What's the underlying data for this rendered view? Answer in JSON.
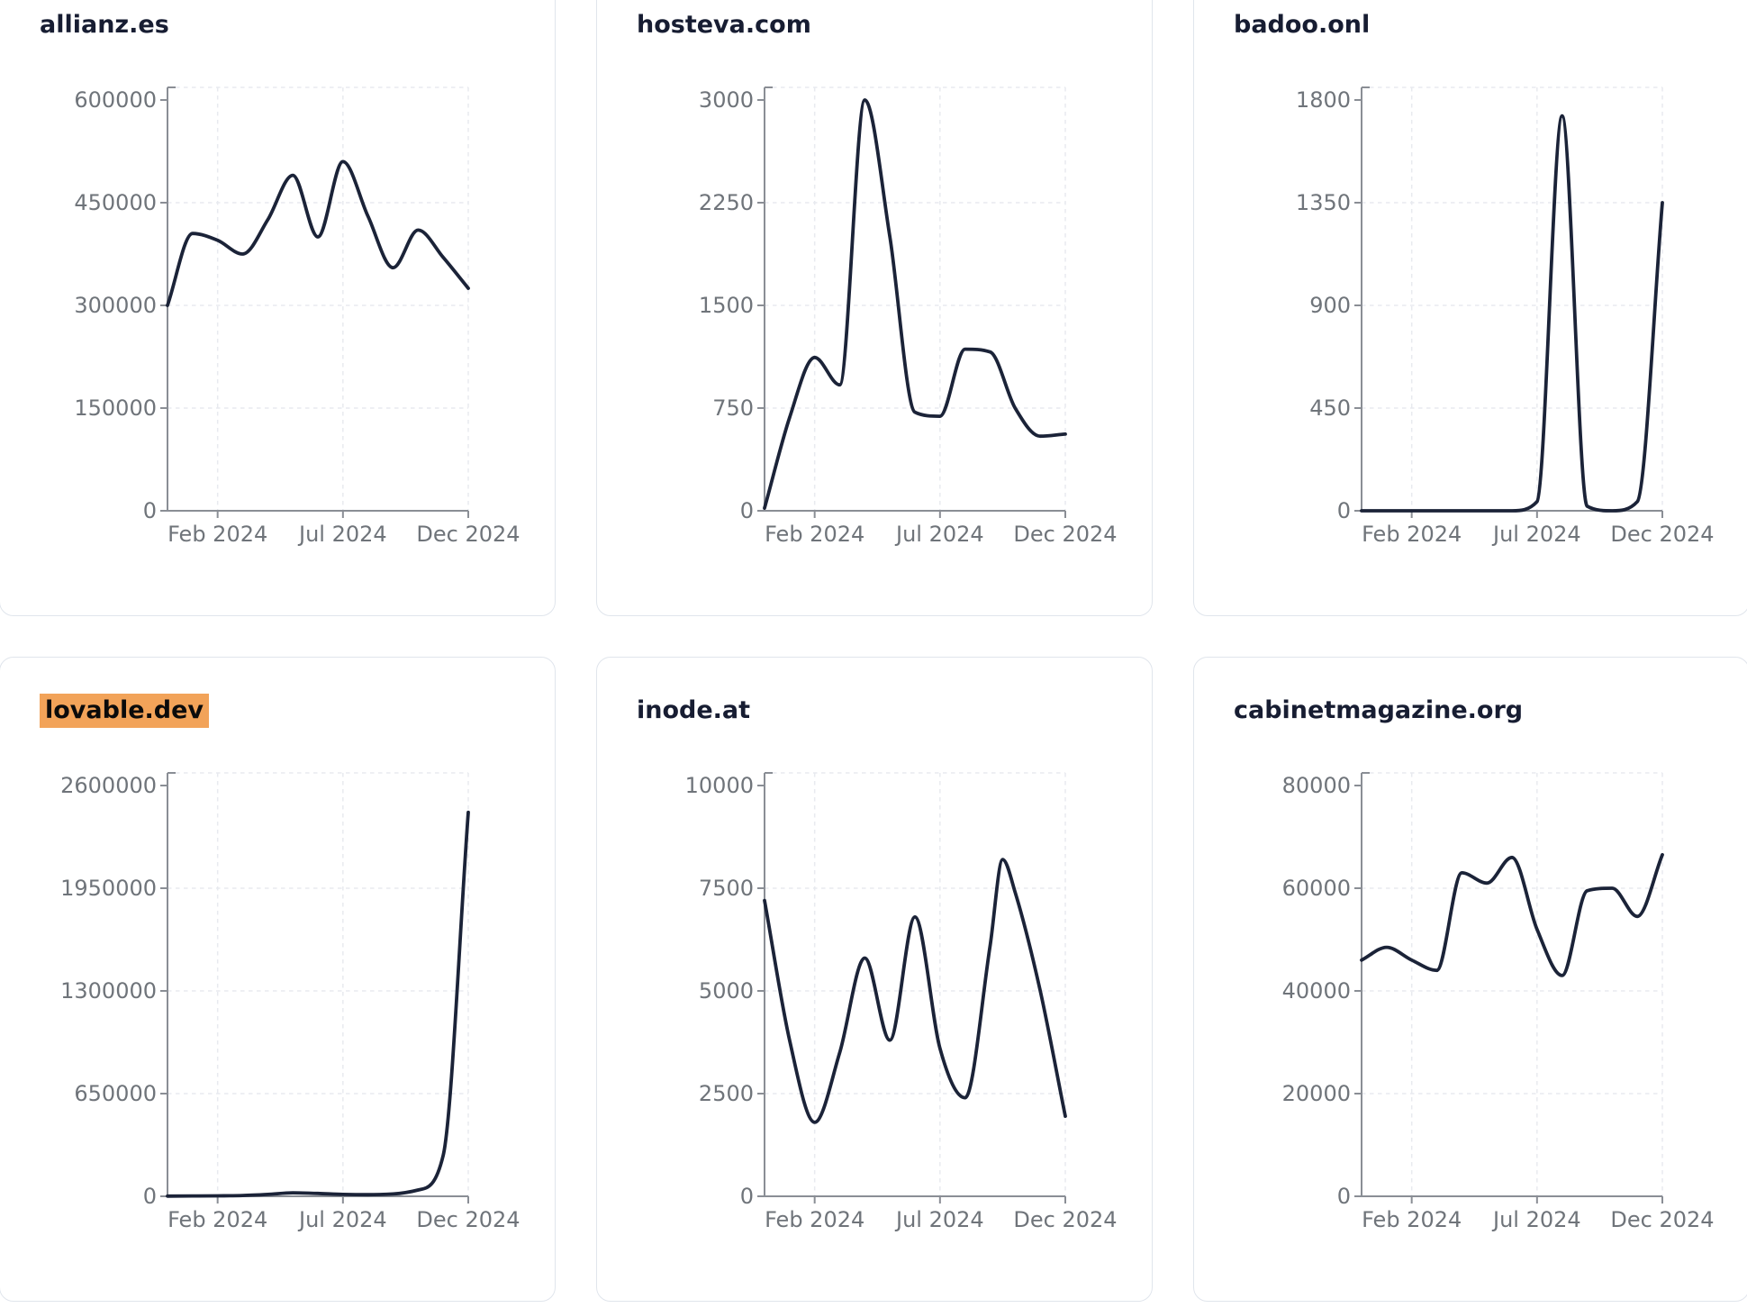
{
  "page": {
    "background": "#ffffff",
    "card_border_color": "#e0e5ec",
    "card_background": "#ffffff",
    "title_color": "#171d32",
    "axis_line_color": "#8a8e95",
    "tick_label_color": "#6f747a",
    "grid_line_color": "#e8eaef",
    "series_color": "#1b2338",
    "highlight_color": "#f2a359"
  },
  "chart_data": [
    {
      "type": "line",
      "title": "allianz.es",
      "title_highlighted": false,
      "line_color": "#1b2338",
      "x_unit": "months since Dec 2023",
      "x": [
        0,
        1,
        2,
        3,
        4,
        5,
        6,
        7,
        8,
        9,
        10,
        11,
        12
      ],
      "values": [
        300000,
        405000,
        395000,
        375000,
        425000,
        490000,
        400000,
        510000,
        430000,
        355000,
        410000,
        370000,
        325000
      ],
      "ylim": [
        0,
        600000
      ],
      "yticks": [
        0,
        150000,
        300000,
        450000,
        600000
      ],
      "xtick_labels": [
        "Feb 2024",
        "Jul 2024",
        "Dec 2024"
      ],
      "xtick_positions": [
        2,
        7,
        12
      ],
      "grid": true,
      "legend": "none"
    },
    {
      "type": "line",
      "title": "hosteva.com",
      "title_highlighted": false,
      "line_color": "#1b2338",
      "x_unit": "months since Dec 2023",
      "x": [
        0,
        1,
        2,
        3,
        4,
        5,
        6,
        7,
        8,
        9,
        10,
        11,
        12
      ],
      "values": [
        20,
        680,
        1120,
        920,
        3000,
        2000,
        720,
        690,
        1180,
        1160,
        750,
        545,
        560
      ],
      "ylim": [
        0,
        3000
      ],
      "yticks": [
        0,
        750,
        1500,
        2250,
        3000
      ],
      "xtick_labels": [
        "Feb 2024",
        "Jul 2024",
        "Dec 2024"
      ],
      "xtick_positions": [
        2,
        7,
        12
      ],
      "grid": true,
      "legend": "none"
    },
    {
      "type": "line",
      "title": "badoo.onl",
      "title_highlighted": false,
      "line_color": "#1b2338",
      "x_unit": "months since Dec 2023",
      "x": [
        0,
        1,
        2,
        3,
        4,
        5,
        6,
        7,
        8,
        9,
        10,
        11,
        12
      ],
      "values": [
        0,
        0,
        0,
        0,
        0,
        0,
        0,
        40,
        1730,
        20,
        0,
        40,
        1350
      ],
      "ylim": [
        0,
        1800
      ],
      "yticks": [
        0,
        450,
        900,
        1350,
        1800
      ],
      "xtick_labels": [
        "Feb 2024",
        "Jul 2024",
        "Dec 2024"
      ],
      "xtick_positions": [
        2,
        7,
        12
      ],
      "grid": true,
      "legend": "none"
    },
    {
      "type": "line",
      "title": "lovable.dev",
      "title_highlighted": true,
      "highlight_color": "#f2a359",
      "line_color": "#1b2338",
      "x_unit": "months since Dec 2023",
      "x": [
        0,
        1,
        2,
        3,
        4,
        5,
        6,
        7,
        8,
        9,
        10,
        11,
        12
      ],
      "values": [
        1000,
        2000,
        3000,
        5000,
        12000,
        22000,
        18000,
        12000,
        10000,
        15000,
        40000,
        260000,
        2430000
      ],
      "ylim": [
        0,
        2600000
      ],
      "yticks": [
        0,
        650000,
        1300000,
        1950000,
        2600000
      ],
      "xtick_labels": [
        "Feb 2024",
        "Jul 2024",
        "Dec 2024"
      ],
      "xtick_positions": [
        2,
        7,
        12
      ],
      "grid": true,
      "legend": "none"
    },
    {
      "type": "line",
      "title": "inode.at",
      "title_highlighted": false,
      "line_color": "#1b2338",
      "x_unit": "months since Dec 2023",
      "x": [
        0,
        1,
        2,
        3,
        4,
        5,
        6,
        7,
        8,
        9,
        9.5,
        10,
        11,
        12
      ],
      "values": [
        7200,
        3800,
        1800,
        3500,
        5800,
        3800,
        6800,
        3600,
        2400,
        6100,
        8200,
        7400,
        5000,
        1950
      ],
      "ylim": [
        0,
        10000
      ],
      "yticks": [
        0,
        2500,
        5000,
        7500,
        10000
      ],
      "xtick_labels": [
        "Feb 2024",
        "Jul 2024",
        "Dec 2024"
      ],
      "xtick_positions": [
        2,
        7,
        12
      ],
      "grid": true,
      "legend": "none"
    },
    {
      "type": "line",
      "title": "cabinetmagazine.org",
      "title_highlighted": false,
      "line_color": "#1b2338",
      "x_unit": "months since Dec 2023",
      "x": [
        0,
        1,
        2,
        3,
        4,
        5,
        6,
        7,
        8,
        9,
        10,
        11,
        12
      ],
      "values": [
        46000,
        48500,
        46000,
        44000,
        63000,
        61000,
        66000,
        52000,
        43000,
        59500,
        60000,
        54500,
        66500
      ],
      "ylim": [
        0,
        80000
      ],
      "yticks": [
        0,
        20000,
        40000,
        60000,
        80000
      ],
      "xtick_labels": [
        "Feb 2024",
        "Jul 2024",
        "Dec 2024"
      ],
      "xtick_positions": [
        2,
        7,
        12
      ],
      "grid": true,
      "legend": "none"
    }
  ]
}
